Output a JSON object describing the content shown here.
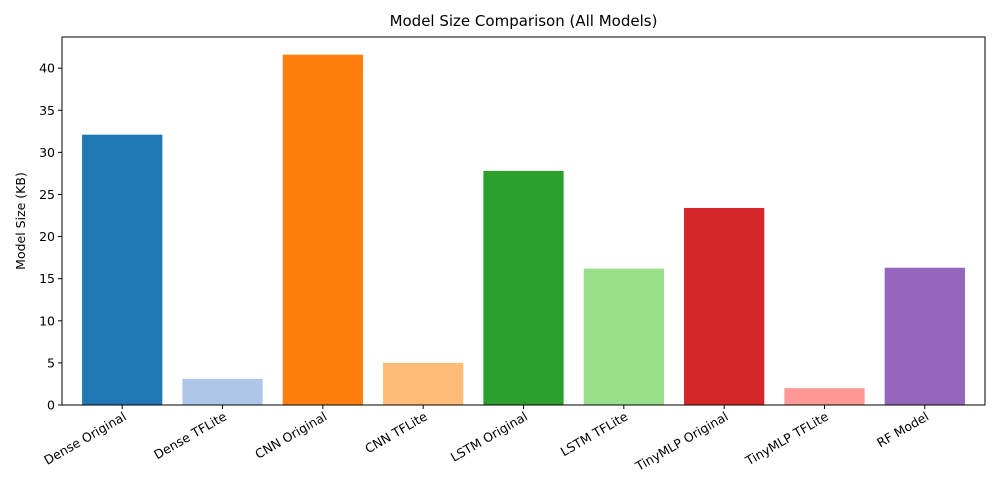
{
  "chart_data": {
    "type": "bar",
    "title": "Model Size Comparison (All Models)",
    "xlabel": "",
    "ylabel": "Model Size (KB)",
    "ylim": [
      0,
      43.7
    ],
    "yticks": [
      0,
      5,
      10,
      15,
      20,
      25,
      30,
      35,
      40
    ],
    "grid": false,
    "categories": [
      "Dense Original",
      "Dense TFLite",
      "CNN Original",
      "CNN TFLite",
      "LSTM Original",
      "LSTM TFLite",
      "TinyMLP Original",
      "TinyMLP TFLite",
      "RF Model"
    ],
    "values": [
      32.1,
      3.1,
      41.6,
      5.0,
      27.8,
      16.2,
      23.4,
      2.0,
      16.3
    ],
    "colors": [
      "#1f77b4",
      "#aec7e8",
      "#ff7f0e",
      "#ffbb78",
      "#2ca02c",
      "#98df8a",
      "#d62728",
      "#ff9896",
      "#9467bd"
    ],
    "xtick_rotation_deg": 30
  }
}
